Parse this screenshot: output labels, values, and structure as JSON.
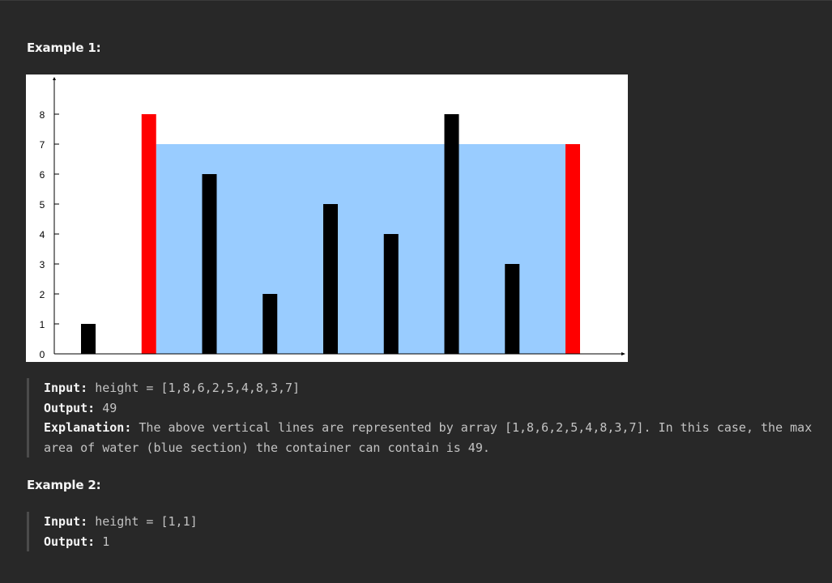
{
  "example1": {
    "heading": "Example 1:",
    "input_label": "Input:",
    "input_value": "height = [1,8,6,2,5,4,8,3,7]",
    "output_label": "Output:",
    "output_value": "49",
    "explanation_label": "Explanation:",
    "explanation_text": "The above vertical lines are represented by array [1,8,6,2,5,4,8,3,7]. In this case, the max area of water (blue section) the container can contain is 49."
  },
  "example2": {
    "heading": "Example 2:",
    "input_label": "Input:",
    "input_value": "height = [1,1]",
    "output_label": "Output:",
    "output_value": "1"
  },
  "chart_data": {
    "type": "bar",
    "title": "",
    "xlabel": "",
    "ylabel": "",
    "x": [
      0,
      1,
      2,
      3,
      4,
      5,
      6,
      7,
      8
    ],
    "values": [
      1,
      8,
      6,
      2,
      5,
      4,
      8,
      3,
      7
    ],
    "ylim": [
      0,
      8
    ],
    "yticks": [
      0,
      1,
      2,
      3,
      4,
      5,
      6,
      7,
      8
    ],
    "highlighted_indices": [
      1,
      8
    ],
    "water_level": 7,
    "water_range": [
      1,
      8
    ],
    "colors": {
      "bar": "#000000",
      "highlight": "#ff0000",
      "water": "#99ccff",
      "background": "#ffffff"
    }
  }
}
